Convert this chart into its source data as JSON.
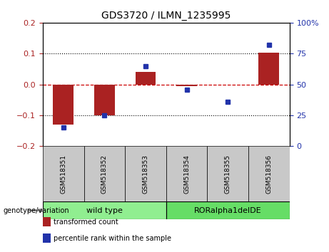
{
  "title": "GDS3720 / ILMN_1235995",
  "samples": [
    "GSM518351",
    "GSM518352",
    "GSM518353",
    "GSM518354",
    "GSM518355",
    "GSM518356"
  ],
  "red_values": [
    -0.13,
    -0.1,
    0.04,
    -0.005,
    -0.002,
    0.102
  ],
  "blue_values": [
    15,
    25,
    65,
    46,
    36,
    82
  ],
  "ylim_left": [
    -0.2,
    0.2
  ],
  "ylim_right": [
    0,
    100
  ],
  "yticks_left": [
    -0.2,
    -0.1,
    0,
    0.1,
    0.2
  ],
  "yticks_right": [
    0,
    25,
    50,
    75,
    100
  ],
  "red_color": "#AA2222",
  "blue_color": "#2233AA",
  "hline_color": "#CC0000",
  "dot_lines": [
    -0.1,
    0.1
  ],
  "groups": [
    {
      "label": "wild type",
      "indices": [
        0,
        1,
        2
      ],
      "color": "#90EE90"
    },
    {
      "label": "RORalpha1delDE",
      "indices": [
        3,
        4,
        5
      ],
      "color": "#66DD66"
    }
  ],
  "legend_items": [
    {
      "label": "transformed count",
      "color": "#AA2222"
    },
    {
      "label": "percentile rank within the sample",
      "color": "#2233AA"
    }
  ],
  "genotype_label": "genotype/variation",
  "bar_width": 0.5,
  "sample_box_color": "#C8C8C8",
  "group_box_border_color": "#228B22"
}
